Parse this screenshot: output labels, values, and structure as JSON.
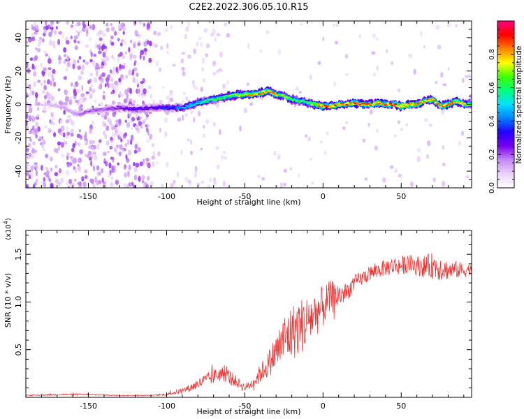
{
  "title": "C2E2.2022.306.05.10.R15",
  "chart_data": [
    {
      "type": "heatmap",
      "title": "C2E2.2022.306.05.10.R15",
      "xlabel": "Height of straight line (km)",
      "ylabel": "Frequency (Hz)",
      "xlim": [
        -190,
        95
      ],
      "ylim": [
        -50,
        50
      ],
      "xticks": [
        -150,
        -100,
        -50,
        0,
        50
      ],
      "yticks": [
        -40,
        -20,
        0,
        20,
        40
      ],
      "colorbar": {
        "label": "Normalized spectral amplitude",
        "range": [
          0.0,
          1.0
        ],
        "ticks": [
          0.0,
          0.2,
          0.4,
          0.6,
          0.8
        ],
        "tick_labels": [
          "0.0",
          "0.2",
          "0.4",
          "0.6",
          "0.8"
        ],
        "colormap": [
          "#ffffff",
          "#ead2fb",
          "#c58af3",
          "#7a00f0",
          "#2400ff",
          "#0080ff",
          "#00e0ff",
          "#00ff80",
          "#40ff00",
          "#ffff00",
          "#ff8000",
          "#ff0000",
          "#ff0080"
        ]
      },
      "ridge": {
        "x": [
          -175,
          -165,
          -160,
          -155,
          -150,
          -140,
          -130,
          -120,
          -110,
          -100,
          -90,
          -80,
          -70,
          -60,
          -50,
          -45,
          -40,
          -35,
          -30,
          -25,
          -20,
          -15,
          -10,
          -5,
          0,
          5,
          10,
          15,
          20,
          25,
          30,
          35,
          40,
          45,
          50,
          55,
          60,
          65,
          70,
          75,
          80,
          85,
          90,
          95
        ],
        "y": [
          0,
          -2,
          -5,
          -6,
          -4,
          -3,
          -2,
          -3,
          -2,
          -2,
          -2,
          1,
          3,
          5,
          6,
          6,
          7,
          8,
          6,
          5,
          3,
          2,
          1,
          0,
          -1,
          -1,
          0,
          0,
          1,
          0,
          0,
          1,
          0,
          0,
          -1,
          0,
          0,
          2,
          3,
          -1,
          0,
          2,
          0,
          0
        ],
        "peak_amplitude": [
          0.1,
          0.15,
          0.15,
          0.2,
          0.2,
          0.2,
          0.25,
          0.3,
          0.3,
          0.35,
          0.45,
          0.55,
          0.6,
          0.65,
          0.75,
          0.8,
          0.85,
          0.85,
          0.75,
          0.7,
          0.65,
          0.6,
          0.65,
          0.75,
          0.85,
          0.85,
          0.85,
          0.85,
          0.85,
          0.85,
          0.85,
          0.85,
          0.85,
          0.85,
          0.85,
          0.85,
          0.8,
          0.8,
          0.85,
          0.8,
          0.85,
          0.8,
          0.7,
          0.6
        ]
      }
    },
    {
      "type": "line",
      "xlabel": "Height of straight line (km)",
      "ylabel": "SNR (10 * v/v)",
      "ylabel_multiplier": "(x10^4)",
      "xlim": [
        -190,
        95
      ],
      "ylim": [
        0,
        1.75
      ],
      "xticks": [
        -150,
        -100,
        -50,
        0,
        50
      ],
      "yticks": [
        0.5,
        1.0,
        1.5
      ],
      "ytick_labels": [
        "0.5",
        "1.0",
        "1.5"
      ],
      "series": [
        {
          "color": "#ee3333",
          "x": [
            -190,
            -170,
            -150,
            -130,
            -110,
            -100,
            -95,
            -90,
            -85,
            -80,
            -75,
            -70,
            -65,
            -60,
            -55,
            -50,
            -45,
            -40,
            -35,
            -30,
            -25,
            -20,
            -15,
            -10,
            -5,
            0,
            5,
            10,
            15,
            20,
            25,
            30,
            35,
            40,
            45,
            50,
            55,
            60,
            65,
            70,
            75,
            80,
            85,
            90,
            95
          ],
          "y": [
            0.02,
            0.03,
            0.03,
            0.02,
            0.02,
            0.03,
            0.05,
            0.07,
            0.1,
            0.14,
            0.18,
            0.22,
            0.25,
            0.22,
            0.16,
            0.1,
            0.15,
            0.25,
            0.35,
            0.48,
            0.6,
            0.68,
            0.74,
            0.8,
            0.88,
            0.95,
            1.05,
            1.07,
            1.1,
            1.2,
            1.25,
            1.3,
            1.33,
            1.36,
            1.38,
            1.38,
            1.4,
            1.38,
            1.37,
            1.38,
            1.36,
            1.33,
            1.34,
            1.33,
            1.35
          ],
          "noise_amplitude": [
            0.005,
            0.01,
            0.008,
            0.005,
            0.005,
            0.01,
            0.02,
            0.03,
            0.04,
            0.06,
            0.07,
            0.08,
            0.08,
            0.08,
            0.06,
            0.04,
            0.06,
            0.1,
            0.14,
            0.2,
            0.28,
            0.3,
            0.3,
            0.28,
            0.25,
            0.22,
            0.18,
            0.14,
            0.1,
            0.08,
            0.08,
            0.08,
            0.08,
            0.09,
            0.1,
            0.1,
            0.1,
            0.1,
            0.12,
            0.14,
            0.14,
            0.1,
            0.09,
            0.08,
            0.06
          ]
        }
      ]
    }
  ]
}
